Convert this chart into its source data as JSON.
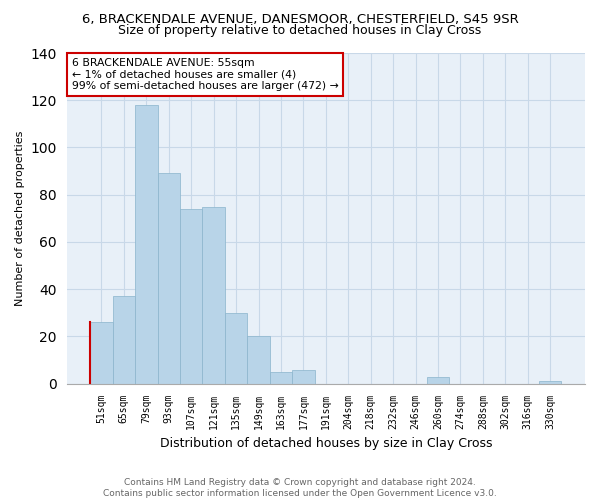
{
  "title1": "6, BRACKENDALE AVENUE, DANESMOOR, CHESTERFIELD, S45 9SR",
  "title2": "Size of property relative to detached houses in Clay Cross",
  "xlabel": "Distribution of detached houses by size in Clay Cross",
  "ylabel": "Number of detached properties",
  "bar_labels": [
    "51sqm",
    "65sqm",
    "79sqm",
    "93sqm",
    "107sqm",
    "121sqm",
    "135sqm",
    "149sqm",
    "163sqm",
    "177sqm",
    "191sqm",
    "204sqm",
    "218sqm",
    "232sqm",
    "246sqm",
    "260sqm",
    "274sqm",
    "288sqm",
    "302sqm",
    "316sqm",
    "330sqm"
  ],
  "bar_values": [
    26,
    37,
    118,
    89,
    74,
    75,
    30,
    20,
    5,
    6,
    0,
    0,
    0,
    0,
    0,
    3,
    0,
    0,
    0,
    0,
    1
  ],
  "highlight_bar_index": 0,
  "bar_color": "#b8d4e8",
  "bar_edge_color": "#8ab4cc",
  "highlight_edge_color": "#cc0000",
  "annotation_text": "6 BRACKENDALE AVENUE: 55sqm\n← 1% of detached houses are smaller (4)\n99% of semi-detached houses are larger (472) →",
  "annotation_box_color": "#ffffff",
  "annotation_box_edge_color": "#cc0000",
  "plot_bg_color": "#e8f0f8",
  "ylim": [
    0,
    140
  ],
  "yticks": [
    0,
    20,
    40,
    60,
    80,
    100,
    120,
    140
  ],
  "footer1": "Contains HM Land Registry data © Crown copyright and database right 2024.",
  "footer2": "Contains public sector information licensed under the Open Government Licence v3.0.",
  "title1_fontsize": 9.5,
  "title2_fontsize": 9,
  "ylabel_fontsize": 8,
  "xlabel_fontsize": 9,
  "tick_fontsize": 7,
  "annot_fontsize": 7.8,
  "footer_fontsize": 6.5
}
